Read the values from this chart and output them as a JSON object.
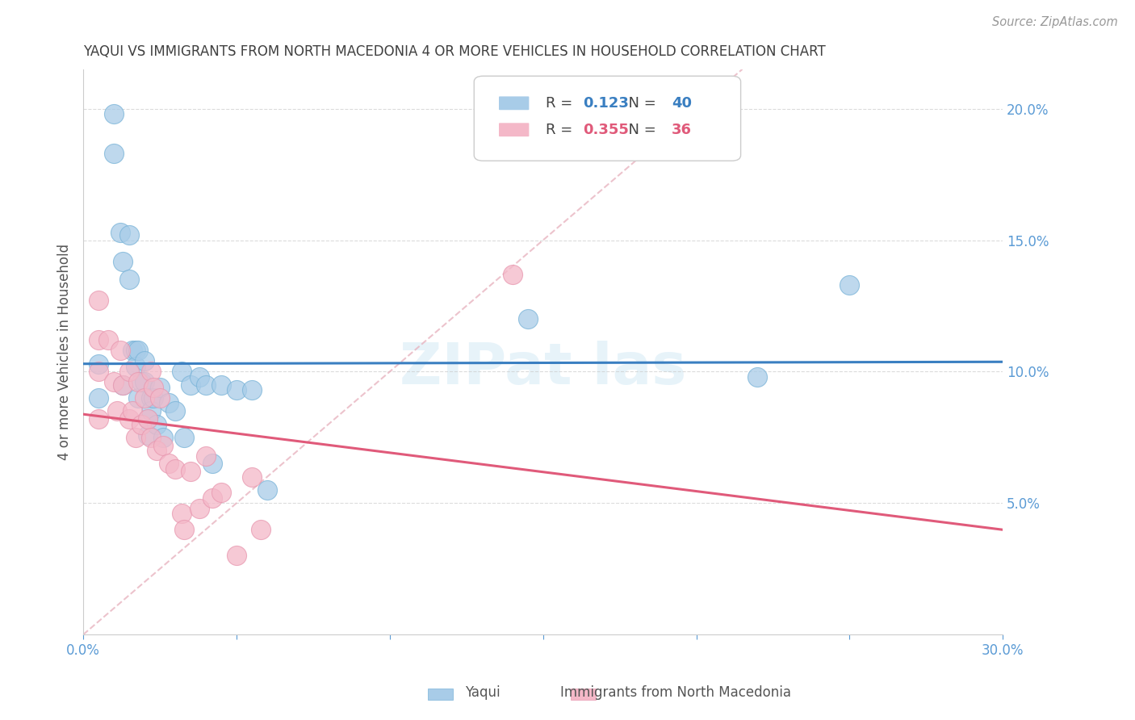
{
  "title": "YAQUI VS IMMIGRANTS FROM NORTH MACEDONIA 4 OR MORE VEHICLES IN HOUSEHOLD CORRELATION CHART",
  "source": "Source: ZipAtlas.com",
  "ylabel": "4 or more Vehicles in Household",
  "xlim": [
    0.0,
    0.3
  ],
  "ylim": [
    0.0,
    0.215
  ],
  "xticks": [
    0.0,
    0.05,
    0.1,
    0.15,
    0.2,
    0.25,
    0.3
  ],
  "xtick_labels": [
    "0.0%",
    "",
    "",
    "",
    "",
    "",
    "30.0%"
  ],
  "yticks_right": [
    0.05,
    0.1,
    0.15,
    0.2
  ],
  "ytick_labels_right": [
    "5.0%",
    "10.0%",
    "15.0%",
    "20.0%"
  ],
  "R_blue": 0.123,
  "N_blue": 40,
  "R_pink": 0.355,
  "N_pink": 36,
  "color_blue": "#a8cce8",
  "color_pink": "#f4b8c8",
  "line_color_blue": "#3a7fc1",
  "line_color_pink": "#e05a7a",
  "line_color_diag": "#e8b4c0",
  "background_color": "#ffffff",
  "grid_color": "#cccccc",
  "title_color": "#404040",
  "axis_color": "#5b9bd5",
  "blue_x": [
    0.005,
    0.005,
    0.01,
    0.01,
    0.012,
    0.013,
    0.013,
    0.015,
    0.015,
    0.016,
    0.017,
    0.017,
    0.018,
    0.018,
    0.019,
    0.02,
    0.02,
    0.021,
    0.021,
    0.022,
    0.022,
    0.023,
    0.024,
    0.025,
    0.026,
    0.028,
    0.03,
    0.032,
    0.033,
    0.035,
    0.038,
    0.04,
    0.042,
    0.045,
    0.05,
    0.055,
    0.06,
    0.145,
    0.22,
    0.25
  ],
  "blue_y": [
    0.103,
    0.09,
    0.198,
    0.183,
    0.153,
    0.142,
    0.095,
    0.152,
    0.135,
    0.108,
    0.108,
    0.102,
    0.09,
    0.108,
    0.096,
    0.104,
    0.096,
    0.082,
    0.076,
    0.09,
    0.085,
    0.09,
    0.08,
    0.094,
    0.075,
    0.088,
    0.085,
    0.1,
    0.075,
    0.095,
    0.098,
    0.095,
    0.065,
    0.095,
    0.093,
    0.093,
    0.055,
    0.12,
    0.098,
    0.133
  ],
  "pink_x": [
    0.005,
    0.005,
    0.005,
    0.005,
    0.008,
    0.01,
    0.011,
    0.012,
    0.013,
    0.015,
    0.015,
    0.016,
    0.017,
    0.018,
    0.019,
    0.02,
    0.021,
    0.022,
    0.022,
    0.023,
    0.024,
    0.025,
    0.026,
    0.028,
    0.03,
    0.032,
    0.033,
    0.035,
    0.038,
    0.04,
    0.042,
    0.045,
    0.05,
    0.14,
    0.055,
    0.058
  ],
  "pink_y": [
    0.127,
    0.112,
    0.1,
    0.082,
    0.112,
    0.096,
    0.085,
    0.108,
    0.095,
    0.082,
    0.1,
    0.085,
    0.075,
    0.096,
    0.08,
    0.09,
    0.082,
    0.1,
    0.075,
    0.094,
    0.07,
    0.09,
    0.072,
    0.065,
    0.063,
    0.046,
    0.04,
    0.062,
    0.048,
    0.068,
    0.052,
    0.054,
    0.03,
    0.137,
    0.06,
    0.04
  ]
}
